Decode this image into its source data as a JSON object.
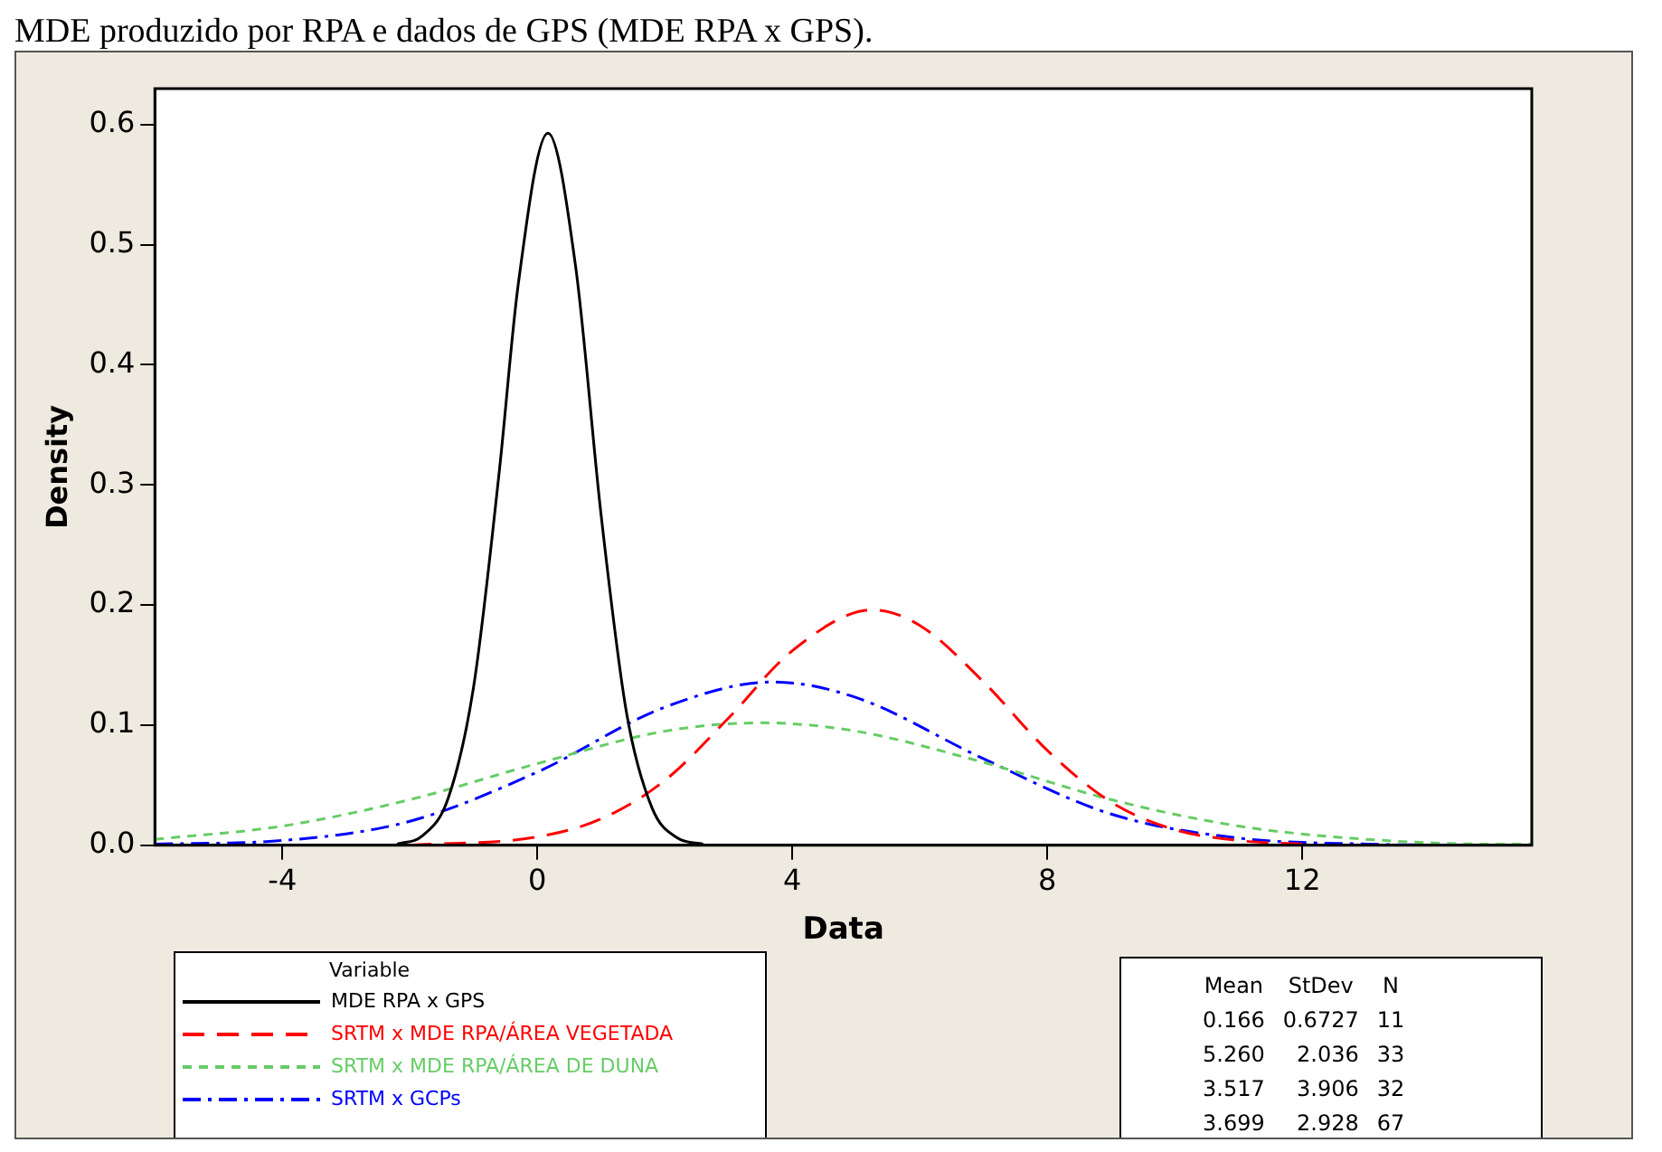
{
  "chart_data": {
    "type": "line",
    "title": "MDE produzido por RPA e dados de GPS (MDE RPA x GPS).",
    "xlabel": "Data",
    "ylabel": "Density",
    "legend_title": "Variable",
    "legend": "bottom left",
    "grid": false,
    "marker": "none",
    "xlim": [
      -6,
      15.6
    ],
    "xticks": [
      -4,
      0,
      4,
      8,
      12
    ],
    "ylim": [
      0,
      0.63
    ],
    "yticks": [
      {
        "value": 0,
        "label": "0.0"
      },
      {
        "value": 0.1,
        "label": "0.1"
      },
      {
        "value": 0.2,
        "label": "0.2"
      },
      {
        "value": 0.3,
        "label": "0.3"
      },
      {
        "value": 0.4,
        "label": "0.4"
      },
      {
        "value": 0.5,
        "label": "0.5"
      },
      {
        "value": 0.6,
        "label": "0.6"
      }
    ],
    "series": [
      {
        "name": "MDE RPA x GPS",
        "color": "#000000",
        "line_style": "solid",
        "x": [
          -2.2,
          -1.8,
          -1.4,
          -1.0,
          -0.6,
          -0.3,
          0.166,
          0.6,
          1.0,
          1.4,
          1.8,
          2.2,
          2.6
        ],
        "values": [
          0.001,
          0.008,
          0.039,
          0.132,
          0.31,
          0.467,
          0.593,
          0.482,
          0.275,
          0.11,
          0.031,
          0.006,
          0.001
        ]
      },
      {
        "name": "SRTM x MDE RPA/ÁREA VEGETADA",
        "color": "#ff0000",
        "line_style": "dashed",
        "x": [
          -2,
          0,
          1,
          2,
          3,
          4,
          5.26,
          6,
          7,
          8,
          9,
          10,
          11,
          12
        ],
        "values": [
          0.0,
          0.007,
          0.022,
          0.054,
          0.106,
          0.162,
          0.196,
          0.183,
          0.136,
          0.079,
          0.036,
          0.013,
          0.004,
          0.001
        ]
      },
      {
        "name": "SRTM x MDE RPA/ÁREA DE DUNA",
        "color": "#66cc66",
        "line_style": "dashed",
        "x": [
          -6,
          -4,
          -2,
          0,
          2,
          3.517,
          5,
          7,
          9,
          11,
          13,
          15,
          15.6
        ],
        "values": [
          0.005,
          0.016,
          0.038,
          0.068,
          0.095,
          0.102,
          0.095,
          0.069,
          0.038,
          0.016,
          0.005,
          0.001,
          0.001
        ]
      },
      {
        "name": "SRTM x GCPs",
        "color": "#0000ff",
        "line_style": "dashed",
        "x": [
          -6,
          -4,
          -2,
          0,
          2,
          3.699,
          5,
          7,
          9,
          11,
          13,
          14.5
        ],
        "values": [
          0.001,
          0.004,
          0.02,
          0.061,
          0.115,
          0.136,
          0.123,
          0.072,
          0.026,
          0.006,
          0.001,
          0.0
        ]
      }
    ],
    "annotations": [
      "Mean StDev N",
      "0.166 0.6727 11",
      "5.260 2.036 33",
      "3.517 3.906 32",
      "3.699 2.928 67"
    ]
  }
}
